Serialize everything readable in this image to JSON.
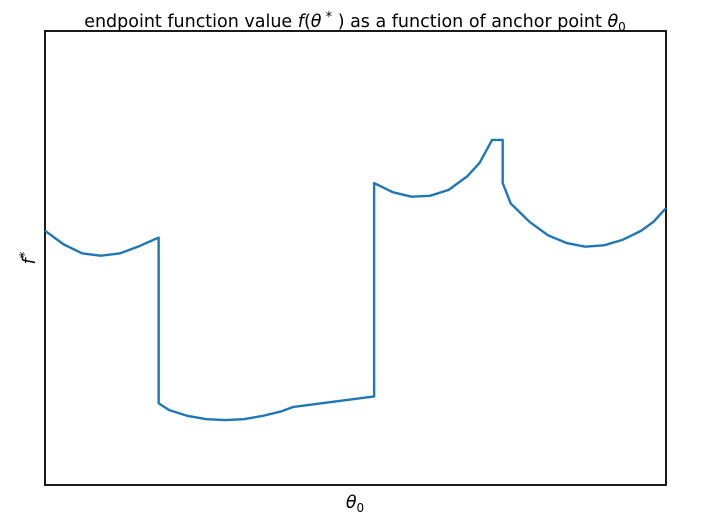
{
  "chart_data": {
    "type": "line",
    "title": "endpoint function value f(θ*) as a function of anchor point θ₀",
    "title_parts": {
      "prefix": "endpoint function value ",
      "f": "f",
      "open": "(",
      "theta": "θ",
      "star": " *",
      "close": " )",
      "middle": " as a function of anchor point ",
      "theta0": "θ",
      "theta0_sub": "0"
    },
    "xlabel": "θ₀",
    "xlabel_parts": {
      "theta": "θ",
      "sub": "0"
    },
    "ylabel": "f*",
    "ylabel_parts": {
      "f": "f",
      "star": "*"
    },
    "ticks_shown": false,
    "grid": false,
    "legend": "none",
    "xlim": [
      0,
      1
    ],
    "ylim": [
      0,
      1
    ],
    "series": [
      {
        "color": "#1f77b4",
        "points": [
          [
            0.0,
            0.56
          ],
          [
            0.03,
            0.53
          ],
          [
            0.06,
            0.51
          ],
          [
            0.09,
            0.505
          ],
          [
            0.12,
            0.51
          ],
          [
            0.15,
            0.525
          ],
          [
            0.183,
            0.545
          ],
          [
            0.183,
            0.18
          ],
          [
            0.2,
            0.165
          ],
          [
            0.23,
            0.152
          ],
          [
            0.26,
            0.145
          ],
          [
            0.29,
            0.143
          ],
          [
            0.32,
            0.145
          ],
          [
            0.35,
            0.152
          ],
          [
            0.38,
            0.162
          ],
          [
            0.4,
            0.172
          ],
          [
            0.53,
            0.195
          ],
          [
            0.53,
            0.665
          ],
          [
            0.56,
            0.645
          ],
          [
            0.59,
            0.635
          ],
          [
            0.62,
            0.637
          ],
          [
            0.65,
            0.65
          ],
          [
            0.68,
            0.68
          ],
          [
            0.7,
            0.71
          ],
          [
            0.72,
            0.76
          ],
          [
            0.737,
            0.76
          ],
          [
            0.737,
            0.665
          ],
          [
            0.75,
            0.62
          ],
          [
            0.78,
            0.58
          ],
          [
            0.81,
            0.55
          ],
          [
            0.84,
            0.533
          ],
          [
            0.87,
            0.525
          ],
          [
            0.9,
            0.528
          ],
          [
            0.93,
            0.54
          ],
          [
            0.96,
            0.56
          ],
          [
            0.98,
            0.58
          ],
          [
            1.0,
            0.61
          ]
        ]
      }
    ]
  },
  "colors": {
    "line": "#1f77b4",
    "axes": "#000000",
    "background": "#ffffff"
  }
}
